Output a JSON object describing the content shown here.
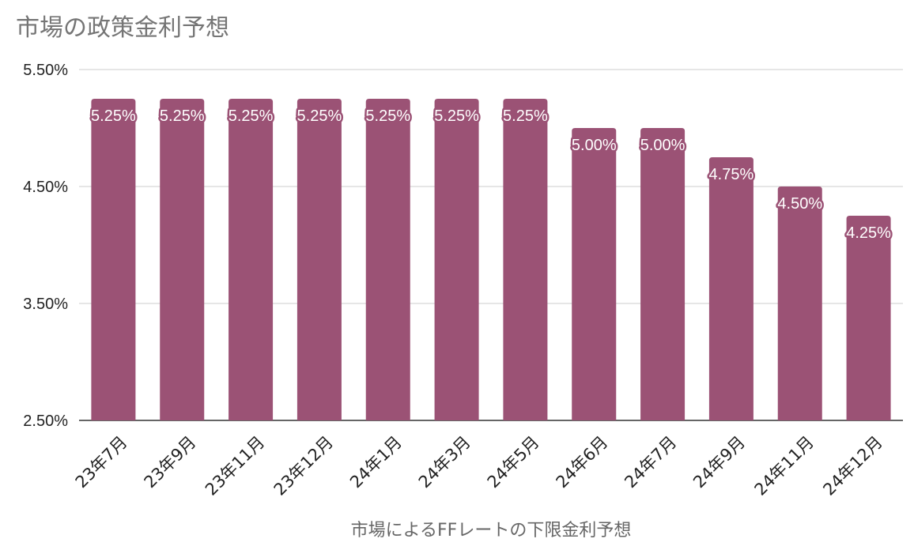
{
  "chart_data": {
    "type": "bar",
    "title": "市場の政策金利予想",
    "xlabel": "市場によるFFレートの下限金利予想",
    "ylabel": "",
    "categories": [
      "23年7月",
      "23年9月",
      "23年11月",
      "23年12月",
      "24年1月",
      "24年3月",
      "24年5月",
      "24年6月",
      "24年7月",
      "24年9月",
      "24年11月",
      "24年12月"
    ],
    "values": [
      5.25,
      5.25,
      5.25,
      5.25,
      5.25,
      5.25,
      5.25,
      5.0,
      5.0,
      4.75,
      4.5,
      4.25
    ],
    "data_labels": [
      "5.25%",
      "5.25%",
      "5.25%",
      "5.25%",
      "5.25%",
      "5.25%",
      "5.25%",
      "5.00%",
      "5.00%",
      "4.75%",
      "4.50%",
      "4.25%"
    ],
    "ylim": [
      2.5,
      5.5
    ],
    "yticks": [
      2.5,
      3.5,
      4.5,
      5.5
    ],
    "ytick_labels": [
      "2.50%",
      "3.50%",
      "4.50%",
      "5.50%"
    ],
    "grid": true,
    "legend": "none",
    "colors": {
      "bar": "#9b5275",
      "grid": "#cccccc",
      "axis": "#333333",
      "title": "#757575",
      "tick": "#222222",
      "label_stroke": "#9b5275",
      "label_fill": "#ffffff"
    }
  }
}
